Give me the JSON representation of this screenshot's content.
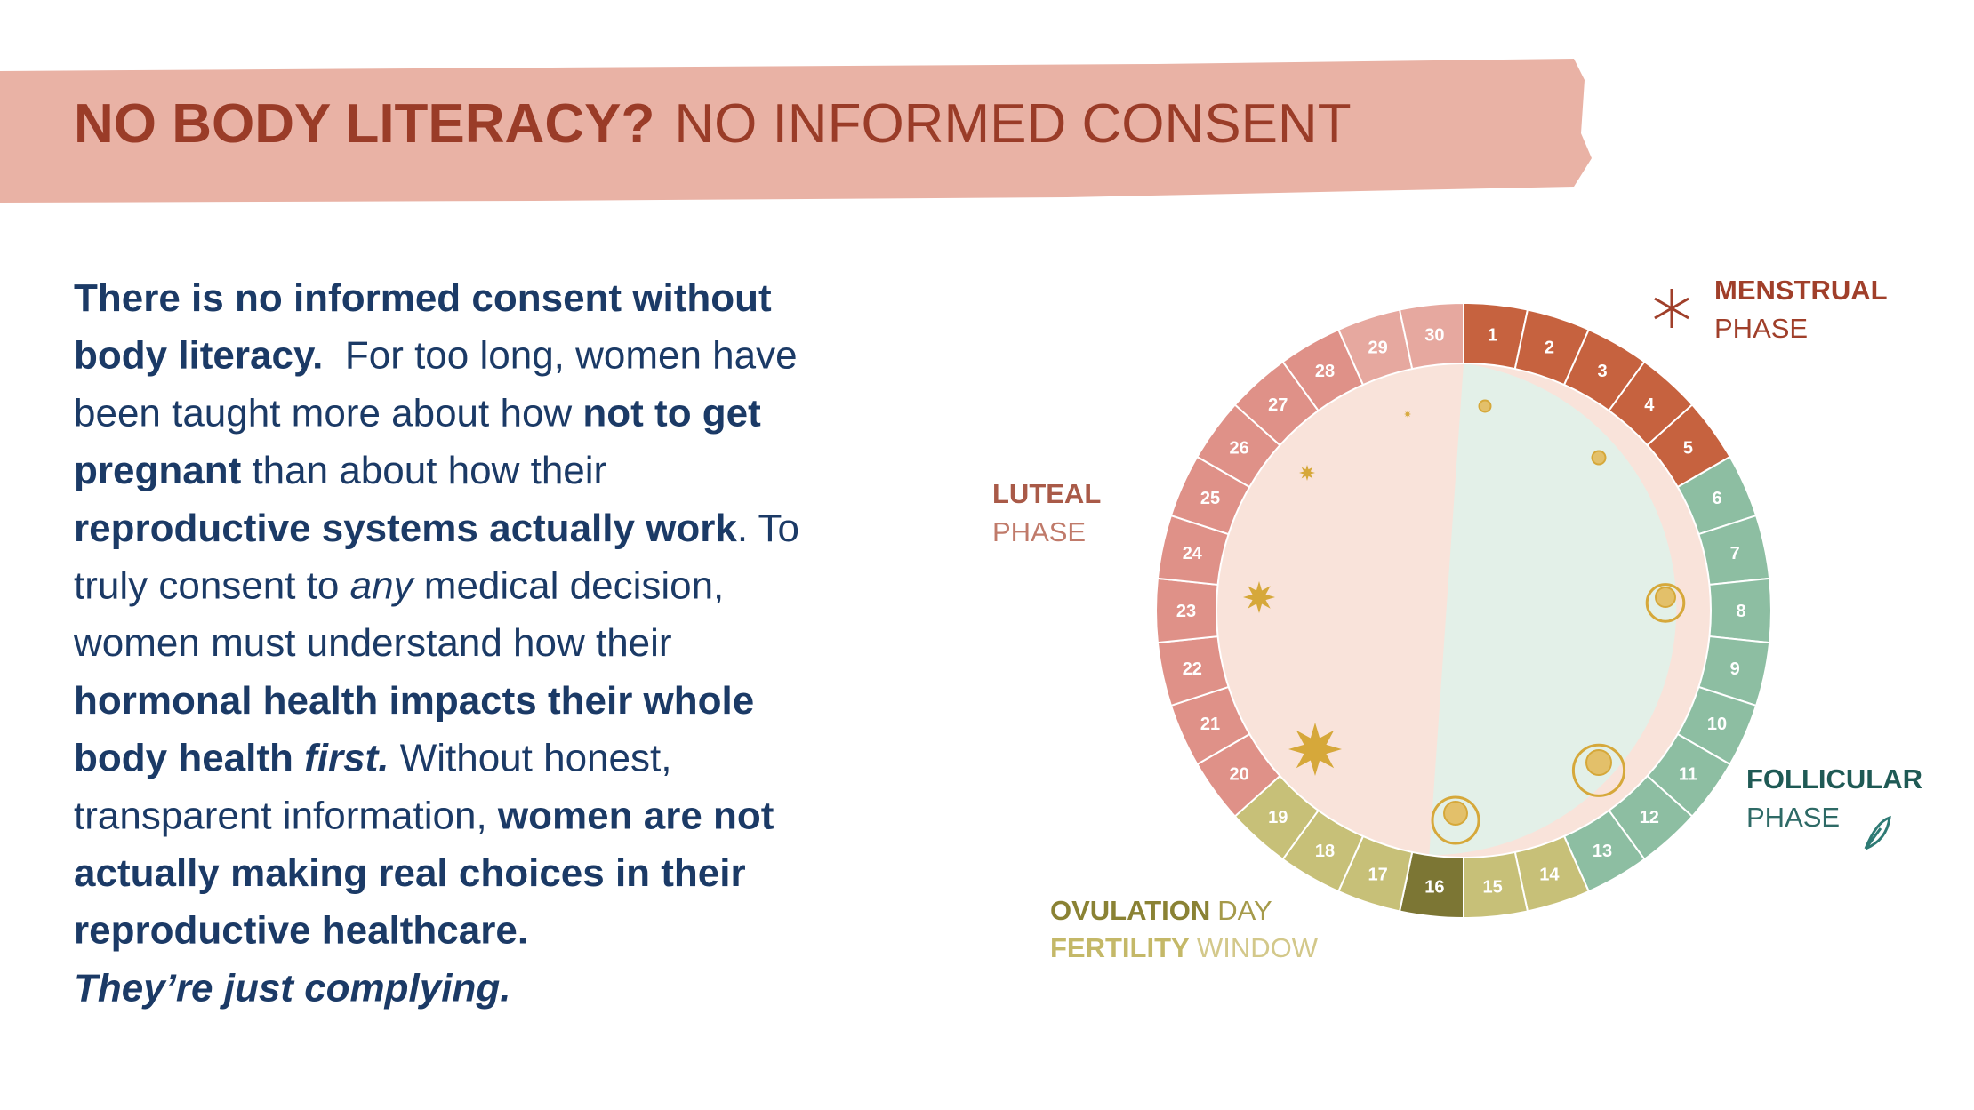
{
  "header": {
    "title_bold": "NO BODY LITERACY?",
    "title_regular": "NO INFORMED CONSENT"
  },
  "body": {
    "lines": [
      [
        {
          "text": "There is no informed consent without",
          "style": "bold"
        }
      ],
      [
        {
          "text": "body literacy.",
          "style": "bold"
        },
        {
          "text": "  For too long, women have",
          "style": "regular"
        }
      ],
      [
        {
          "text": "been taught more about how ",
          "style": "regular"
        },
        {
          "text": "not to get",
          "style": "bold"
        }
      ],
      [
        {
          "text": "pregnant",
          "style": "bold"
        },
        {
          "text": " than about how their",
          "style": "regular"
        }
      ],
      [
        {
          "text": "reproductive systems actually work",
          "style": "bold"
        },
        {
          "text": ". To",
          "style": "regular"
        }
      ],
      [
        {
          "text": "truly consent to ",
          "style": "regular"
        },
        {
          "text": "any",
          "style": "italic"
        },
        {
          "text": " medical decision,",
          "style": "regular"
        }
      ],
      [
        {
          "text": "women must understand how their",
          "style": "regular"
        }
      ],
      [
        {
          "text": "hormonal health impacts their whole",
          "style": "bold"
        }
      ],
      [
        {
          "text": "body health ",
          "style": "bold"
        },
        {
          "text": "first.",
          "style": "bold-italic"
        },
        {
          "text": " Without honest,",
          "style": "regular"
        }
      ],
      [
        {
          "text": "transparent information, ",
          "style": "regular"
        },
        {
          "text": "women are not",
          "style": "bold"
        }
      ],
      [
        {
          "text": "actually making real choices in their",
          "style": "bold"
        }
      ],
      [
        {
          "text": "reproductive healthcare.",
          "style": "bold"
        }
      ],
      [
        {
          "text": "They’re just complying.",
          "style": "bold-italic"
        }
      ]
    ]
  },
  "cycle_diagram": {
    "days": [
      1,
      2,
      3,
      4,
      5,
      6,
      7,
      8,
      9,
      10,
      11,
      12,
      13,
      14,
      15,
      16,
      17,
      18,
      19,
      20,
      21,
      22,
      23,
      24,
      25,
      26,
      27,
      28,
      29,
      30
    ],
    "phases": [
      {
        "name": "MENSTRUAL",
        "suffix": "PHASE"
      },
      {
        "name": "LUTEAL",
        "suffix": "PHASE"
      },
      {
        "name": "FOLLICULAR",
        "suffix": "PHASE"
      },
      {
        "name": "OVULATION",
        "suffix": "DAY"
      },
      {
        "name": "FERTILITY",
        "suffix": "WINDOW"
      }
    ]
  }
}
